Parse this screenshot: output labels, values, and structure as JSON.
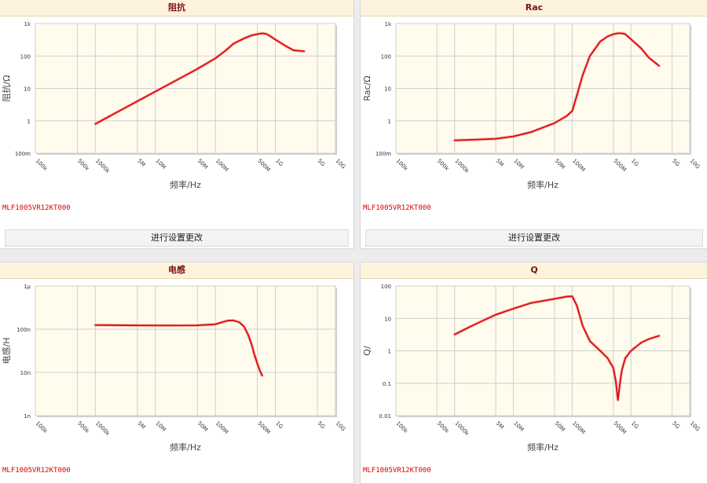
{
  "panels": [
    {
      "id": "impedance",
      "title": "阻抗",
      "part_number": "MLF1005VR12KT000",
      "settings_label": "进行设置更改"
    },
    {
      "id": "rac",
      "title": "Rac",
      "part_number": "MLF1005VR12KT000",
      "settings_label": "进行设置更改"
    },
    {
      "id": "inductance",
      "title": "电感",
      "part_number": "MLF1005VR12KT000"
    },
    {
      "id": "q",
      "title": "Q",
      "part_number": "MLF1005VR12KT000"
    }
  ],
  "colors": {
    "plot_bg": "#fffcee",
    "grid": "#cfcfcf",
    "curve": "#e01010",
    "axis_text": "#333333"
  },
  "chart_data": [
    {
      "type": "line",
      "title": "阻抗",
      "xlabel": "频率/Hz",
      "ylabel": "阻抗/Ω",
      "x_scale": "log",
      "y_scale": "log",
      "xlim": [
        100000,
        10000000000
      ],
      "ylim": [
        0.1,
        1000
      ],
      "x_ticks": [
        [
          100000,
          "100k"
        ],
        [
          500000,
          "500k"
        ],
        [
          1000000,
          "1000k"
        ],
        [
          5000000,
          "5M"
        ],
        [
          10000000,
          "10M"
        ],
        [
          50000000,
          "50M"
        ],
        [
          100000000,
          "100M"
        ],
        [
          500000000,
          "500M"
        ],
        [
          1000000000,
          "1G"
        ],
        [
          5000000000,
          "5G"
        ],
        [
          10000000000,
          "10G"
        ]
      ],
      "y_ticks": [
        [
          0.1,
          "100m"
        ],
        [
          1,
          "1"
        ],
        [
          10,
          "10"
        ],
        [
          100,
          "100"
        ],
        [
          1000,
          "1k"
        ]
      ],
      "grid": true,
      "series": [
        {
          "x": [
            1000000,
            2000000,
            5000000,
            10000000,
            20000000,
            50000000,
            100000000,
            150000000,
            200000000,
            300000000,
            400000000,
            500000000,
            600000000,
            700000000,
            800000000,
            1000000000,
            1500000000,
            2000000000,
            3000000000
          ],
          "y": [
            0.8,
            1.6,
            4,
            8,
            16,
            40,
            85,
            150,
            240,
            350,
            430,
            470,
            500,
            480,
            420,
            320,
            200,
            150,
            140
          ]
        }
      ]
    },
    {
      "type": "line",
      "title": "Rac",
      "xlabel": "频率/Hz",
      "ylabel": "Rac/Ω",
      "x_scale": "log",
      "y_scale": "log",
      "xlim": [
        100000,
        10000000000
      ],
      "ylim": [
        0.1,
        1000
      ],
      "x_ticks": [
        [
          100000,
          "100k"
        ],
        [
          500000,
          "500k"
        ],
        [
          1000000,
          "1000k"
        ],
        [
          5000000,
          "5M"
        ],
        [
          10000000,
          "10M"
        ],
        [
          50000000,
          "50M"
        ],
        [
          100000000,
          "100M"
        ],
        [
          500000000,
          "500M"
        ],
        [
          1000000000,
          "1G"
        ],
        [
          5000000000,
          "5G"
        ],
        [
          10000000000,
          "10G"
        ]
      ],
      "y_ticks": [
        [
          0.1,
          "100m"
        ],
        [
          1,
          "1"
        ],
        [
          10,
          "10"
        ],
        [
          100,
          "100"
        ],
        [
          1000,
          "1k"
        ]
      ],
      "grid": true,
      "series": [
        {
          "x": [
            1000000,
            2000000,
            5000000,
            10000000,
            20000000,
            50000000,
            80000000,
            100000000,
            120000000,
            150000000,
            200000000,
            300000000,
            400000000,
            500000000,
            600000000,
            700000000,
            800000000,
            1000000000,
            1500000000,
            2000000000,
            3000000000
          ],
          "y": [
            0.25,
            0.26,
            0.28,
            0.33,
            0.45,
            0.85,
            1.4,
            2,
            6,
            25,
            100,
            280,
            400,
            470,
            500,
            500,
            470,
            330,
            170,
            90,
            50
          ]
        }
      ]
    },
    {
      "type": "line",
      "title": "电感",
      "xlabel": "频率/Hz",
      "ylabel": "电感/H",
      "x_scale": "log",
      "y_scale": "log",
      "xlim": [
        100000,
        10000000000
      ],
      "ylim": [
        1e-09,
        1e-06
      ],
      "x_ticks": [
        [
          100000,
          "100k"
        ],
        [
          500000,
          "500k"
        ],
        [
          1000000,
          "1000k"
        ],
        [
          5000000,
          "5M"
        ],
        [
          10000000,
          "10M"
        ],
        [
          50000000,
          "50M"
        ],
        [
          100000000,
          "100M"
        ],
        [
          500000000,
          "500M"
        ],
        [
          1000000000,
          "1G"
        ],
        [
          5000000000,
          "5G"
        ],
        [
          10000000000,
          "10G"
        ]
      ],
      "y_ticks": [
        [
          1e-09,
          "1n"
        ],
        [
          1e-08,
          "10n"
        ],
        [
          1e-07,
          "100n"
        ],
        [
          1e-06,
          "1μ"
        ]
      ],
      "grid": true,
      "series": [
        {
          "x": [
            1000000,
            2000000,
            5000000,
            10000000,
            20000000,
            50000000,
            100000000,
            130000000,
            160000000,
            200000000,
            250000000,
            300000000,
            350000000,
            400000000,
            450000000,
            500000000,
            550000000,
            600000000
          ],
          "y": [
            1.25e-07,
            1.24e-07,
            1.23e-07,
            1.22e-07,
            1.22e-07,
            1.23e-07,
            1.3e-07,
            1.45e-07,
            1.58e-07,
            1.6e-07,
            1.45e-07,
            1.15e-07,
            7.5e-08,
            4.5e-08,
            2.5e-08,
            1.6e-08,
            1.1e-08,
            8.5e-09
          ]
        }
      ]
    },
    {
      "type": "line",
      "title": "Q",
      "xlabel": "频率/Hz",
      "ylabel": "Q/",
      "x_scale": "log",
      "y_scale": "log",
      "xlim": [
        100000,
        10000000000
      ],
      "ylim": [
        0.01,
        100
      ],
      "x_ticks": [
        [
          100000,
          "100k"
        ],
        [
          500000,
          "500k"
        ],
        [
          1000000,
          "1000k"
        ],
        [
          5000000,
          "5M"
        ],
        [
          10000000,
          "10M"
        ],
        [
          50000000,
          "50M"
        ],
        [
          100000000,
          "100M"
        ],
        [
          500000000,
          "500M"
        ],
        [
          1000000000,
          "1G"
        ],
        [
          5000000000,
          "5G"
        ],
        [
          10000000000,
          "10G"
        ]
      ],
      "y_ticks": [
        [
          0.01,
          "0.01"
        ],
        [
          0.1,
          "0.1"
        ],
        [
          1,
          "1"
        ],
        [
          10,
          "10"
        ],
        [
          100,
          "100"
        ]
      ],
      "grid": true,
      "series": [
        {
          "x": [
            1000000,
            2000000,
            5000000,
            10000000,
            20000000,
            50000000,
            80000000,
            100000000,
            120000000,
            150000000,
            200000000,
            300000000,
            400000000,
            500000000,
            550000000,
            600000000,
            650000000,
            700000000,
            800000000,
            1000000000,
            1500000000,
            2000000000,
            3000000000
          ],
          "y": [
            3.2,
            6,
            13,
            20,
            30,
            40,
            47,
            48,
            25,
            6,
            2,
            1,
            0.6,
            0.3,
            0.12,
            0.03,
            0.1,
            0.25,
            0.6,
            1,
            1.8,
            2.3,
            2.9
          ]
        }
      ]
    }
  ]
}
